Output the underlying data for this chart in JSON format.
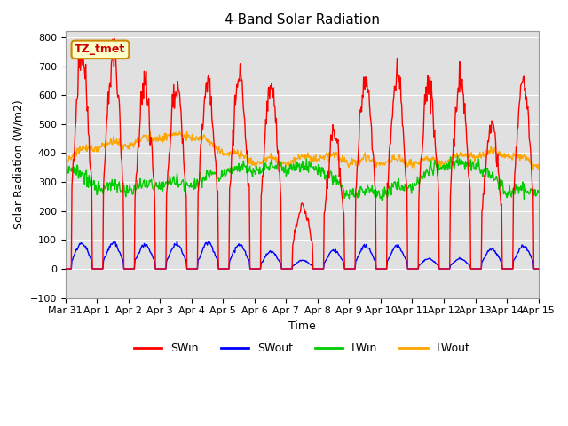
{
  "title": "4-Band Solar Radiation",
  "xlabel": "Time",
  "ylabel": "Solar Radiation (W/m2)",
  "ylim": [
    -100,
    820
  ],
  "xlim": [
    0,
    360
  ],
  "background_color": "#ffffff",
  "plot_bg_color": "#e0e0e0",
  "colors": {
    "SWin": "#ff0000",
    "SWout": "#0000ff",
    "LWin": "#00cc00",
    "LWout": "#ffa500"
  },
  "annotation": "TZ_tmet",
  "annotation_color": "#cc0000",
  "annotation_bg": "#ffffcc",
  "annotation_border": "#cc8800",
  "tick_labels": [
    "Mar 31",
    "Apr 1",
    "Apr 2",
    "Apr 3",
    "Apr 4",
    "Apr 5",
    "Apr 6",
    "Apr 7",
    "Apr 8",
    "Apr 9",
    "Apr 10",
    "Apr 11",
    "Apr 12",
    "Apr 13",
    "Apr 14",
    "Apr 15"
  ],
  "tick_positions": [
    0,
    24,
    48,
    72,
    96,
    120,
    144,
    168,
    192,
    216,
    240,
    264,
    288,
    312,
    336,
    360
  ],
  "yticks": [
    -100,
    0,
    100,
    200,
    300,
    400,
    500,
    600,
    700,
    800
  ],
  "linewidth": 1.0,
  "legend_entries": [
    "SWin",
    "SWout",
    "LWin",
    "LWout"
  ]
}
